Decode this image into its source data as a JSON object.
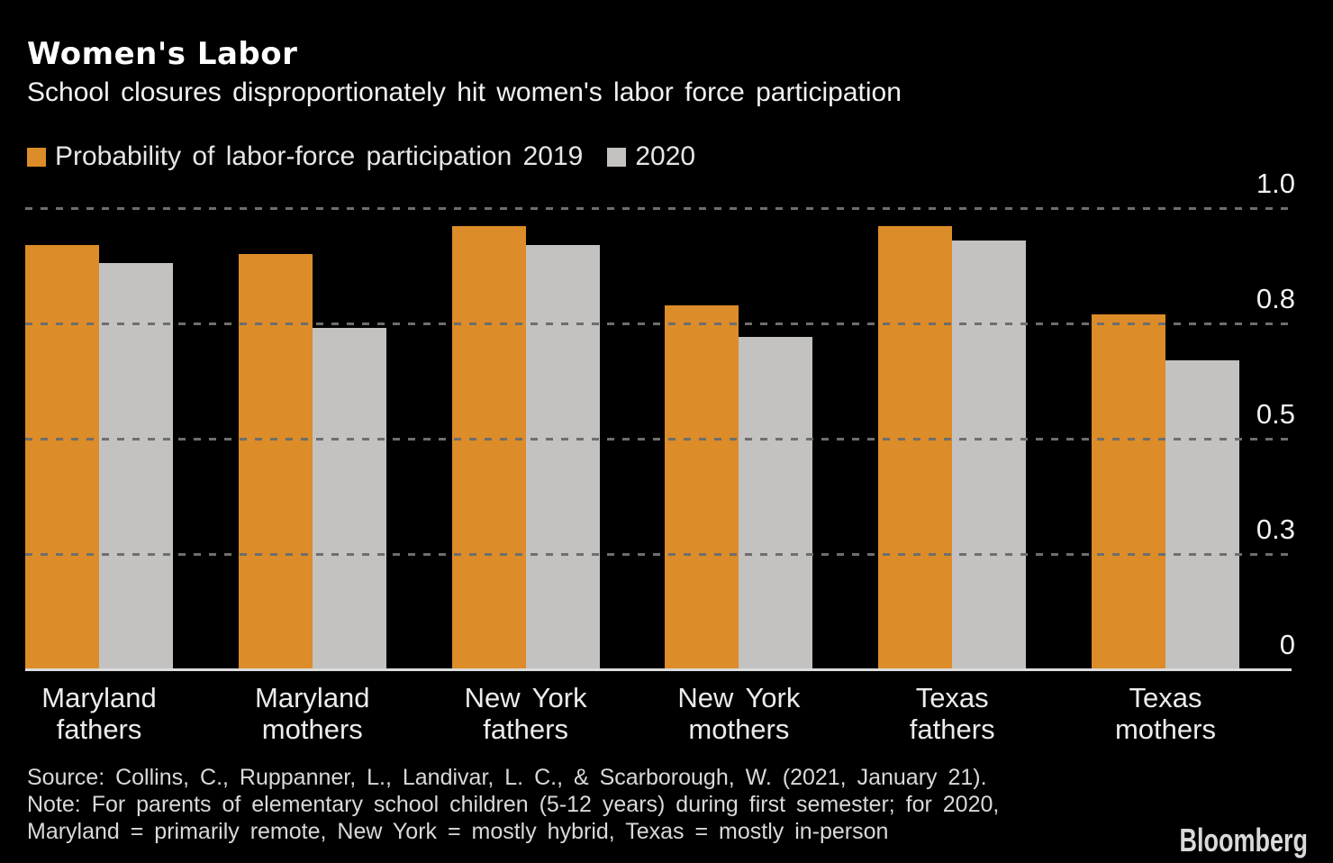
{
  "header": {
    "title": "Women's Labor",
    "subtitle": "School closures disproportionately hit women's labor force participation"
  },
  "legend": [
    {
      "key": "2019",
      "label": "Probability of labor-force participation 2019",
      "color": "#DC8C28"
    },
    {
      "key": "2020",
      "label": "2020",
      "color": "#C4C2C0"
    }
  ],
  "chart_data": {
    "type": "bar",
    "title": "Women's Labor",
    "subtitle": "School closures disproportionately hit women's labor force participation",
    "categories": [
      "Maryland\nfathers",
      "Maryland\nmothers",
      "New York\nfathers",
      "New York\nmothers",
      "Texas fathers",
      "Texas mothers"
    ],
    "series": [
      {
        "name": "Probability of labor-force participation 2019",
        "key": "2019",
        "color": "#DC8C28",
        "values": [
          0.92,
          0.9,
          0.96,
          0.79,
          0.96,
          0.77
        ]
      },
      {
        "name": "2020",
        "key": "2020",
        "color": "#C4C2C0",
        "values": [
          0.88,
          0.74,
          0.92,
          0.72,
          0.93,
          0.67
        ]
      }
    ],
    "xlabel": "",
    "ylabel": "",
    "ylim": [
      0,
      1.0
    ],
    "yticks": [
      {
        "pos": 1.0,
        "label": "1.0"
      },
      {
        "pos": 0.75,
        "label": "0.8"
      },
      {
        "pos": 0.5,
        "label": "0.5"
      },
      {
        "pos": 0.25,
        "label": "0.3"
      },
      {
        "pos": 0,
        "label": "0"
      }
    ],
    "grid": "horizontal dashed, labels right-aligned above lines",
    "legend_position": "top-left",
    "background": "#000000",
    "gridline_color": "#6e6e6e",
    "axis_line_color": "#dcdcdc"
  },
  "footer": {
    "lines": [
      "Source: Collins, C., Ruppanner, L., Landivar, L. C., & Scarborough, W. (2021, January 21).",
      "Note: For parents of elementary school children (5-12 years) during first semester; for 2020,",
      "Maryland = primarily remote, New York = mostly hybrid, Texas = mostly in-person"
    ]
  },
  "branding": {
    "logo": "Bloomberg"
  }
}
